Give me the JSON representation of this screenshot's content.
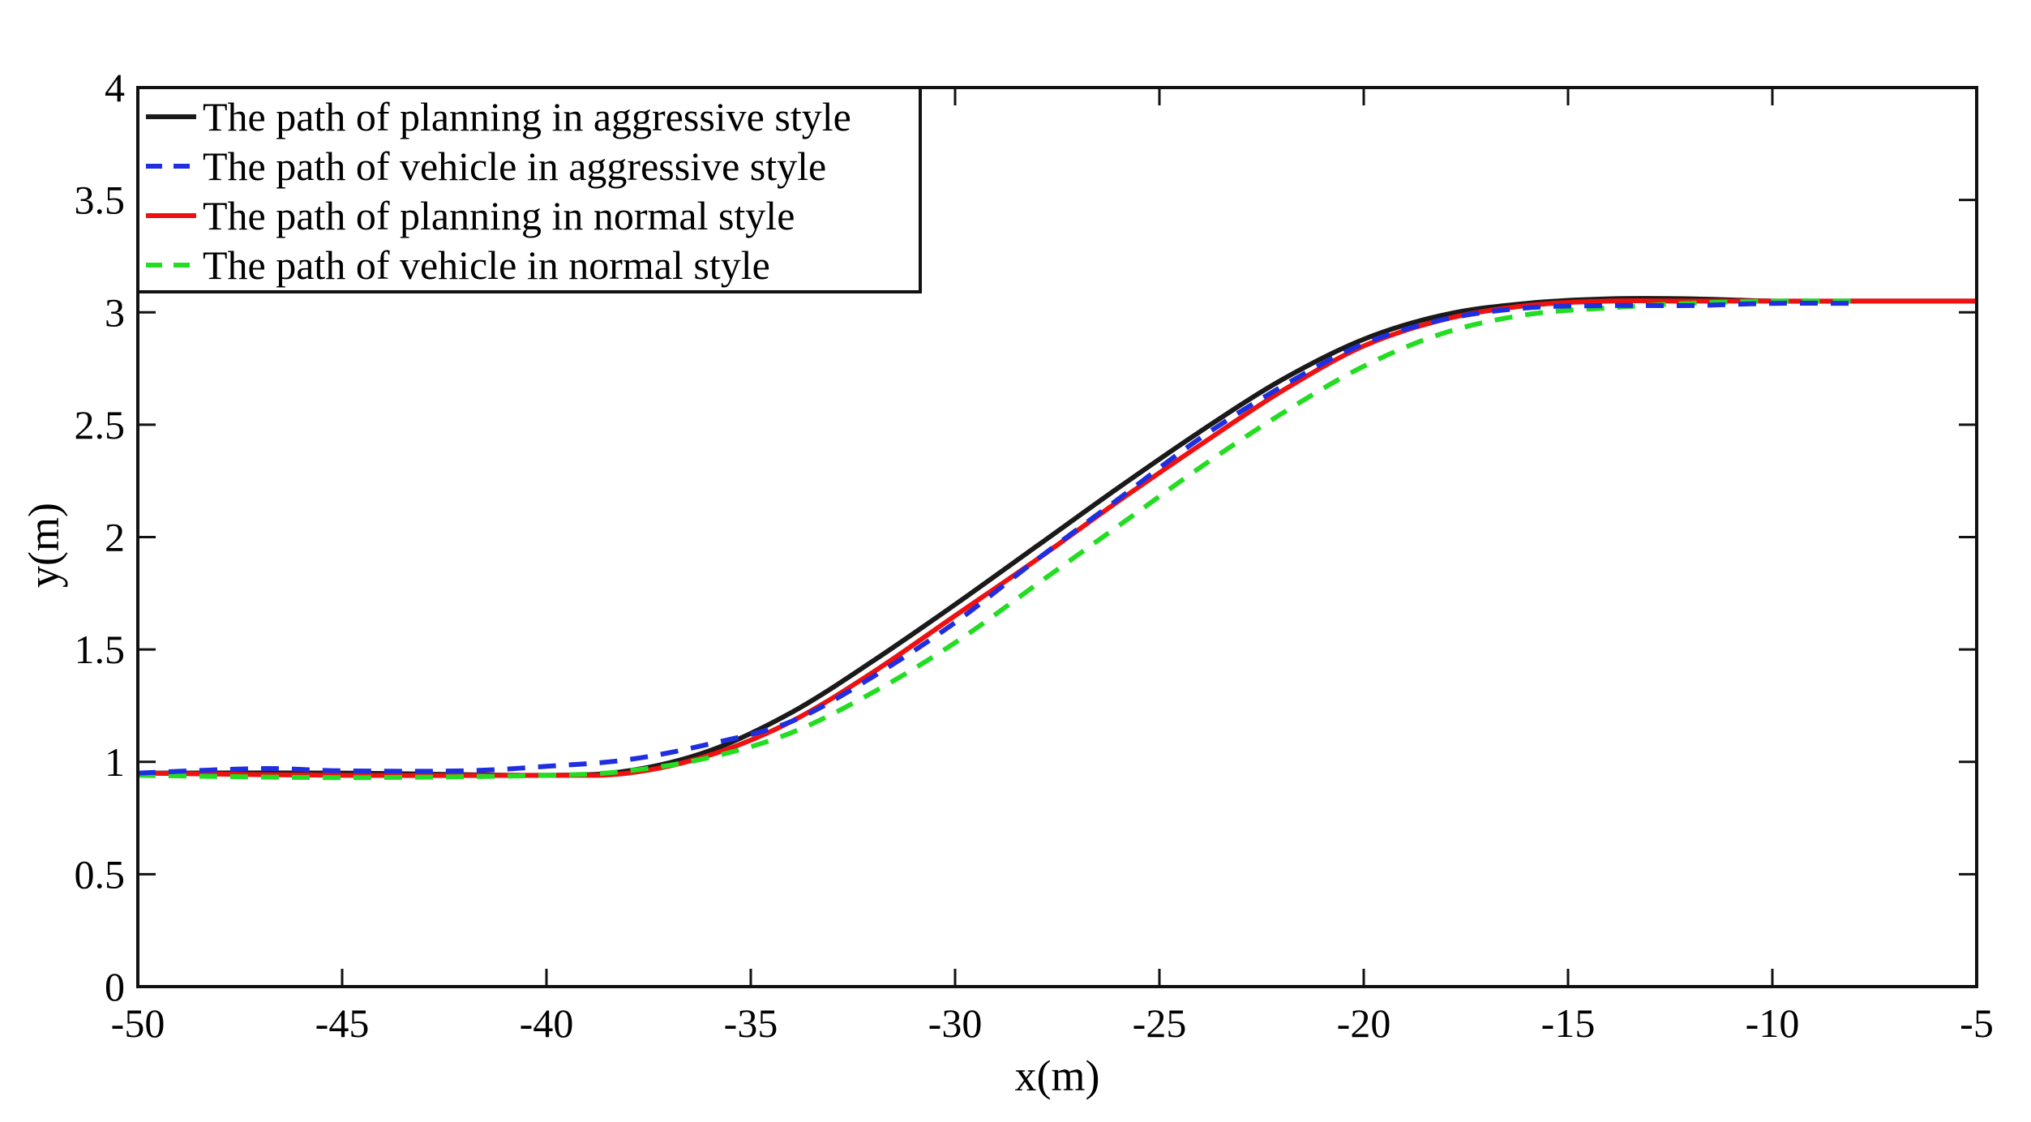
{
  "chart_data": {
    "type": "line",
    "title": "",
    "xlabel": "x(m)",
    "ylabel": "y(m)",
    "xlim": [
      -50,
      -5
    ],
    "ylim": [
      0,
      4
    ],
    "xticks": [
      -50,
      -45,
      -40,
      -35,
      -30,
      -25,
      -20,
      -15,
      -10,
      -5
    ],
    "yticks": [
      0,
      0.5,
      1,
      1.5,
      2,
      2.5,
      3,
      3.5,
      4
    ],
    "xtick_labels": [
      "-50",
      "-45",
      "-40",
      "-35",
      "-30",
      "-25",
      "-20",
      "-15",
      "-10",
      "-5"
    ],
    "ytick_labels": [
      "0",
      "0.5",
      "1",
      "1.5",
      "2",
      "2.5",
      "3",
      "3.5",
      "4"
    ],
    "grid": false,
    "legend_position": "top-left",
    "series": [
      {
        "name": "The path of planning in aggressive style",
        "color": "#1a1a1a",
        "dash": "solid",
        "x": [
          -50,
          -45,
          -40,
          -38,
          -36,
          -34,
          -32,
          -30,
          -28,
          -26,
          -24,
          -22,
          -20,
          -18,
          -16,
          -14,
          -12,
          -10,
          -8,
          -5
        ],
        "y": [
          0.95,
          0.95,
          0.94,
          0.96,
          1.05,
          1.22,
          1.45,
          1.7,
          1.96,
          2.22,
          2.47,
          2.7,
          2.88,
          2.99,
          3.04,
          3.06,
          3.06,
          3.05,
          3.05,
          3.05
        ]
      },
      {
        "name": "The path of vehicle in aggressive style",
        "color": "#1f2fe0",
        "dash": "dashed",
        "x": [
          -50,
          -47,
          -45,
          -42,
          -40,
          -38,
          -36,
          -34,
          -32,
          -30,
          -28,
          -26,
          -24,
          -22,
          -20,
          -18,
          -16,
          -14,
          -12,
          -10,
          -8
        ],
        "y": [
          0.95,
          0.97,
          0.96,
          0.96,
          0.98,
          1.01,
          1.08,
          1.18,
          1.38,
          1.62,
          1.9,
          2.17,
          2.44,
          2.67,
          2.86,
          2.97,
          3.02,
          3.03,
          3.03,
          3.04,
          3.04
        ]
      },
      {
        "name": "The path of planning in normal style",
        "color": "#ee1111",
        "dash": "solid",
        "x": [
          -50,
          -45,
          -40,
          -38,
          -36,
          -34,
          -32,
          -30,
          -28,
          -26,
          -24,
          -22,
          -20,
          -18,
          -16,
          -14,
          -12,
          -10,
          -8,
          -5
        ],
        "y": [
          0.95,
          0.94,
          0.94,
          0.95,
          1.03,
          1.18,
          1.4,
          1.65,
          1.9,
          2.16,
          2.41,
          2.65,
          2.85,
          2.97,
          3.03,
          3.05,
          3.05,
          3.05,
          3.05,
          3.05
        ]
      },
      {
        "name": "The path of vehicle in normal style",
        "color": "#22dd22",
        "dash": "dashed",
        "x": [
          -50,
          -45,
          -40,
          -38,
          -36,
          -34,
          -32,
          -30,
          -28,
          -26,
          -24,
          -22,
          -20,
          -18,
          -16,
          -14,
          -12,
          -10,
          -8
        ],
        "y": [
          0.94,
          0.93,
          0.94,
          0.96,
          1.02,
          1.13,
          1.31,
          1.53,
          1.79,
          2.05,
          2.31,
          2.55,
          2.76,
          2.91,
          2.99,
          3.02,
          3.04,
          3.05,
          3.05
        ]
      }
    ]
  }
}
